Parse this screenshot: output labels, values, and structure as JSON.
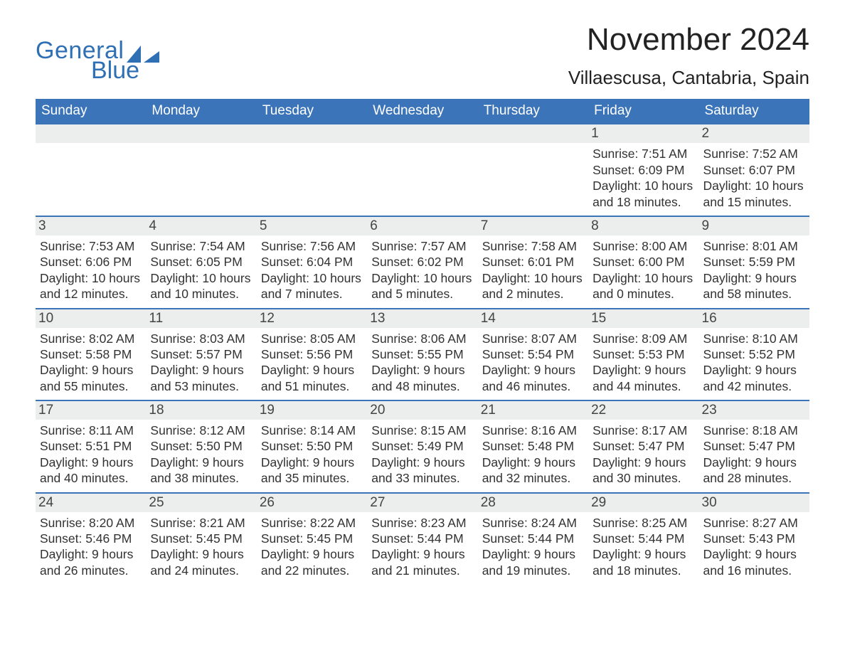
{
  "logo": {
    "word1": "General",
    "word2": "Blue"
  },
  "title": "November 2024",
  "location": "Villaescusa, Cantabria, Spain",
  "colors": {
    "header": "#3b74b9",
    "rowBg": "#eceded",
    "ruleTop": "#3b74b9",
    "bg": "#ffffff",
    "text": "#323232"
  },
  "columns": [
    "Sunday",
    "Monday",
    "Tuesday",
    "Wednesday",
    "Thursday",
    "Friday",
    "Saturday"
  ],
  "labels": {
    "sunrise": "Sunrise:",
    "sunset": "Sunset:",
    "daylight": "Daylight:"
  },
  "weeks": [
    [
      {
        "empty": true
      },
      {
        "empty": true
      },
      {
        "empty": true
      },
      {
        "empty": true
      },
      {
        "empty": true
      },
      {
        "day": "1",
        "sunrise": "7:51 AM",
        "sunset": "6:09 PM",
        "daylight": "10 hours and 18 minutes."
      },
      {
        "day": "2",
        "sunrise": "7:52 AM",
        "sunset": "6:07 PM",
        "daylight": "10 hours and 15 minutes."
      }
    ],
    [
      {
        "day": "3",
        "sunrise": "7:53 AM",
        "sunset": "6:06 PM",
        "daylight": "10 hours and 12 minutes."
      },
      {
        "day": "4",
        "sunrise": "7:54 AM",
        "sunset": "6:05 PM",
        "daylight": "10 hours and 10 minutes."
      },
      {
        "day": "5",
        "sunrise": "7:56 AM",
        "sunset": "6:04 PM",
        "daylight": "10 hours and 7 minutes."
      },
      {
        "day": "6",
        "sunrise": "7:57 AM",
        "sunset": "6:02 PM",
        "daylight": "10 hours and 5 minutes."
      },
      {
        "day": "7",
        "sunrise": "7:58 AM",
        "sunset": "6:01 PM",
        "daylight": "10 hours and 2 minutes."
      },
      {
        "day": "8",
        "sunrise": "8:00 AM",
        "sunset": "6:00 PM",
        "daylight": "10 hours and 0 minutes."
      },
      {
        "day": "9",
        "sunrise": "8:01 AM",
        "sunset": "5:59 PM",
        "daylight": "9 hours and 58 minutes."
      }
    ],
    [
      {
        "day": "10",
        "sunrise": "8:02 AM",
        "sunset": "5:58 PM",
        "daylight": "9 hours and 55 minutes."
      },
      {
        "day": "11",
        "sunrise": "8:03 AM",
        "sunset": "5:57 PM",
        "daylight": "9 hours and 53 minutes."
      },
      {
        "day": "12",
        "sunrise": "8:05 AM",
        "sunset": "5:56 PM",
        "daylight": "9 hours and 51 minutes."
      },
      {
        "day": "13",
        "sunrise": "8:06 AM",
        "sunset": "5:55 PM",
        "daylight": "9 hours and 48 minutes."
      },
      {
        "day": "14",
        "sunrise": "8:07 AM",
        "sunset": "5:54 PM",
        "daylight": "9 hours and 46 minutes."
      },
      {
        "day": "15",
        "sunrise": "8:09 AM",
        "sunset": "5:53 PM",
        "daylight": "9 hours and 44 minutes."
      },
      {
        "day": "16",
        "sunrise": "8:10 AM",
        "sunset": "5:52 PM",
        "daylight": "9 hours and 42 minutes."
      }
    ],
    [
      {
        "day": "17",
        "sunrise": "8:11 AM",
        "sunset": "5:51 PM",
        "daylight": "9 hours and 40 minutes."
      },
      {
        "day": "18",
        "sunrise": "8:12 AM",
        "sunset": "5:50 PM",
        "daylight": "9 hours and 38 minutes."
      },
      {
        "day": "19",
        "sunrise": "8:14 AM",
        "sunset": "5:50 PM",
        "daylight": "9 hours and 35 minutes."
      },
      {
        "day": "20",
        "sunrise": "8:15 AM",
        "sunset": "5:49 PM",
        "daylight": "9 hours and 33 minutes."
      },
      {
        "day": "21",
        "sunrise": "8:16 AM",
        "sunset": "5:48 PM",
        "daylight": "9 hours and 32 minutes."
      },
      {
        "day": "22",
        "sunrise": "8:17 AM",
        "sunset": "5:47 PM",
        "daylight": "9 hours and 30 minutes."
      },
      {
        "day": "23",
        "sunrise": "8:18 AM",
        "sunset": "5:47 PM",
        "daylight": "9 hours and 28 minutes."
      }
    ],
    [
      {
        "day": "24",
        "sunrise": "8:20 AM",
        "sunset": "5:46 PM",
        "daylight": "9 hours and 26 minutes."
      },
      {
        "day": "25",
        "sunrise": "8:21 AM",
        "sunset": "5:45 PM",
        "daylight": "9 hours and 24 minutes."
      },
      {
        "day": "26",
        "sunrise": "8:22 AM",
        "sunset": "5:45 PM",
        "daylight": "9 hours and 22 minutes."
      },
      {
        "day": "27",
        "sunrise": "8:23 AM",
        "sunset": "5:44 PM",
        "daylight": "9 hours and 21 minutes."
      },
      {
        "day": "28",
        "sunrise": "8:24 AM",
        "sunset": "5:44 PM",
        "daylight": "9 hours and 19 minutes."
      },
      {
        "day": "29",
        "sunrise": "8:25 AM",
        "sunset": "5:44 PM",
        "daylight": "9 hours and 18 minutes."
      },
      {
        "day": "30",
        "sunrise": "8:27 AM",
        "sunset": "5:43 PM",
        "daylight": "9 hours and 16 minutes."
      }
    ]
  ]
}
